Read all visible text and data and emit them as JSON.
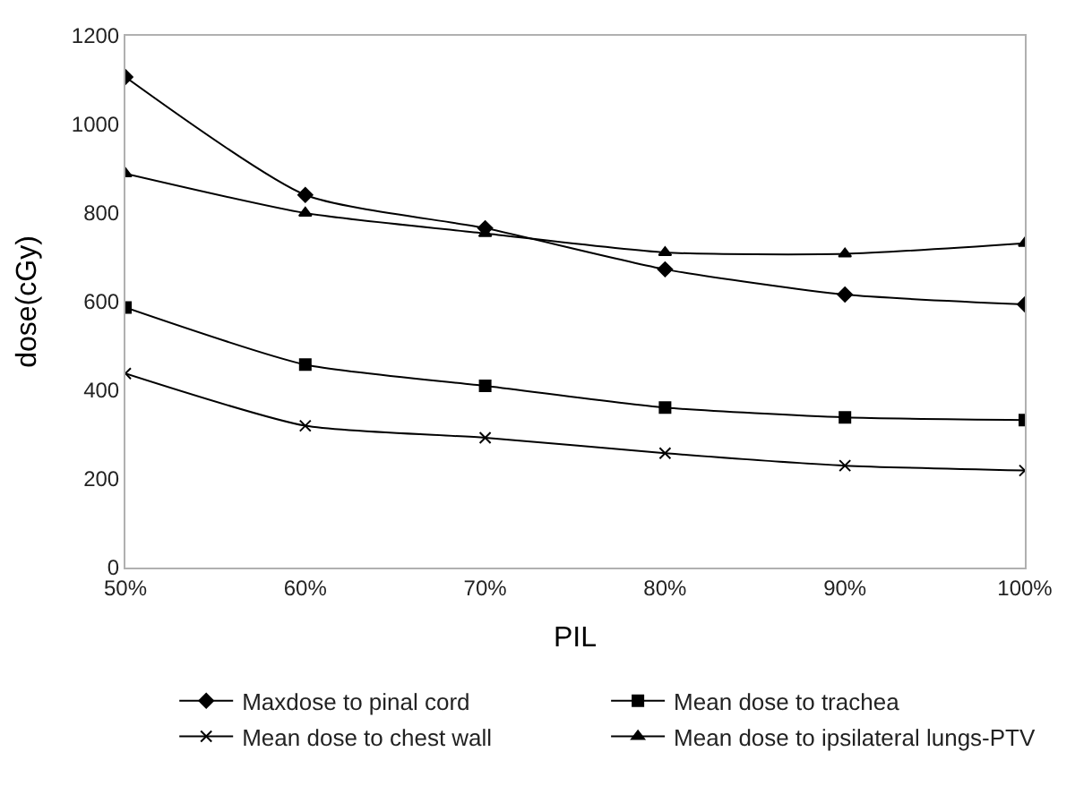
{
  "chart_data": {
    "type": "line",
    "xlabel": "PIL",
    "ylabel": "dose(cGy)",
    "categories": [
      "50%",
      "60%",
      "70%",
      "80%",
      "90%",
      "100%"
    ],
    "ylim": [
      0,
      1200
    ],
    "yticks": [
      0,
      200,
      400,
      600,
      800,
      1000,
      1200
    ],
    "legend": "bottom",
    "series": [
      {
        "name": "Maxdose to pinal cord",
        "color": "#000000",
        "marker": "diamond",
        "values": [
          1107,
          841,
          766,
          673,
          616,
          594
        ]
      },
      {
        "name": "Mean dose to trachea",
        "color": "#000000",
        "marker": "square",
        "values": [
          587,
          458,
          410,
          361,
          339,
          333
        ]
      },
      {
        "name": "Mean dose to chest wall",
        "color": "#000000",
        "marker": "cross",
        "values": [
          438,
          320,
          293,
          258,
          230,
          219
        ]
      },
      {
        "name": "Mean dose to ipsilateral lungs-PTV",
        "color": "#000000",
        "marker": "triangle",
        "values": [
          889,
          800,
          754,
          711,
          708,
          732
        ]
      }
    ]
  }
}
